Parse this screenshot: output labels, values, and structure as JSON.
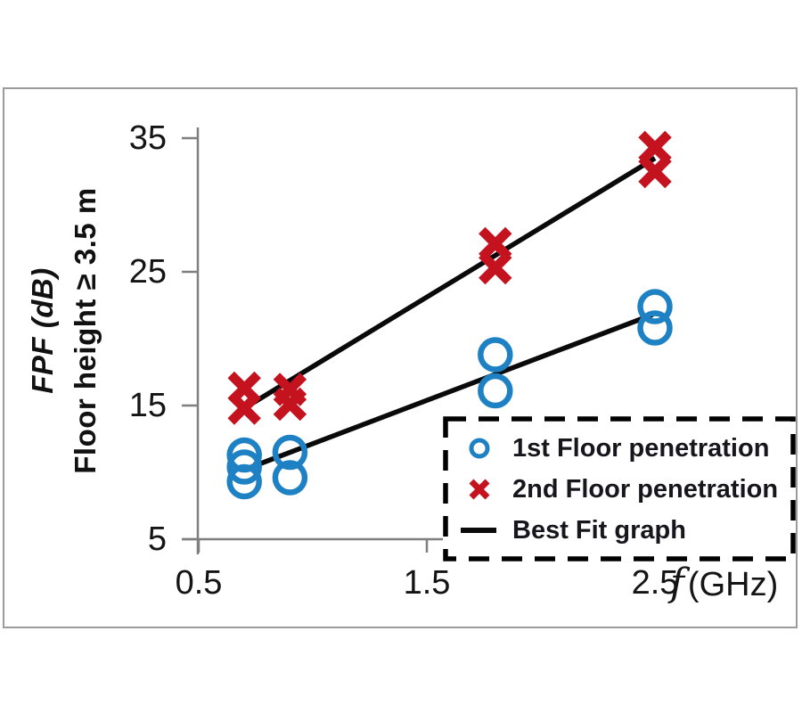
{
  "chart_data": {
    "type": "scatter",
    "title": "",
    "y_axis": {
      "label_line1": "FPF (dB)",
      "label_line2": "Floor height ≥ 3.5 m",
      "ticks": [
        "35",
        "25",
        "15",
        "5"
      ],
      "range": [
        5,
        35
      ]
    },
    "x_axis": {
      "ticks": [
        "0.5",
        "1.5",
        "2.5"
      ],
      "unit_symbol": "f",
      "unit_text": "(GHz)",
      "range": [
        0.5,
        2.6
      ]
    },
    "grid": "off",
    "series": [
      {
        "name": "1st Floor penetration",
        "marker": "circle",
        "color": "#1E81C4",
        "points": [
          [
            0.7,
            11.3
          ],
          [
            0.7,
            10.4
          ],
          [
            0.7,
            9.3
          ],
          [
            0.9,
            11.5
          ],
          [
            0.9,
            9.6
          ],
          [
            1.8,
            18.8
          ],
          [
            1.8,
            16.1
          ],
          [
            2.5,
            22.4
          ],
          [
            2.5,
            20.8
          ]
        ]
      },
      {
        "name": "2nd Floor penetration",
        "marker": "x",
        "color": "#C4121E",
        "points": [
          [
            0.7,
            16.3
          ],
          [
            0.7,
            14.8
          ],
          [
            0.9,
            16.2
          ],
          [
            0.9,
            15.1
          ],
          [
            1.8,
            27.1
          ],
          [
            1.8,
            25.3
          ],
          [
            2.5,
            34.3
          ],
          [
            2.5,
            32.5
          ]
        ]
      }
    ],
    "fit_lines": [
      {
        "name": "Best Fit graph (1st floor)",
        "color": "#0a0a0a",
        "from": [
          0.7,
          10.2
        ],
        "to": [
          2.49,
          21.8
        ]
      },
      {
        "name": "Best Fit graph (2nd floor)",
        "color": "#0a0a0a",
        "from": [
          0.7,
          14.8
        ],
        "to": [
          2.5,
          33.5
        ]
      }
    ],
    "legend": {
      "position": "bottom-right",
      "border": "dashed",
      "items": [
        {
          "label": "1st Floor penetration",
          "marker": "circle",
          "color": "#1E81C4"
        },
        {
          "label": "2nd Floor penetration",
          "marker": "x",
          "color": "#C4121E"
        },
        {
          "label": "Best Fit graph",
          "marker": "line",
          "color": "#0a0a0a"
        }
      ]
    },
    "colors": {
      "axis": "#7f7f7f",
      "tick_text": "#141414",
      "series1": "#1E81C4",
      "series2": "#C4121E",
      "fit_line": "#0a0a0a"
    }
  }
}
